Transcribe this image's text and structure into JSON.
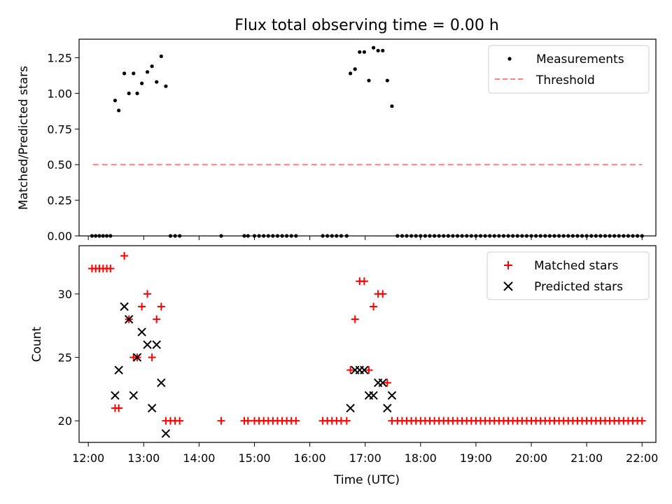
{
  "chart_data": [
    {
      "type": "scatter",
      "title": "Flux total observing time = 0.00 h",
      "xlabel": "",
      "ylabel": "Matched/Predicted stars",
      "xlim": [
        "11:50",
        "22:15"
      ],
      "ylim": [
        0,
        1.38
      ],
      "x_ticks": [
        "12:00",
        "13:00",
        "14:00",
        "15:00",
        "16:00",
        "17:00",
        "18:00",
        "19:00",
        "20:00",
        "21:00",
        "22:00"
      ],
      "y_ticks": [
        "0.00",
        "0.25",
        "0.50",
        "0.75",
        "1.00",
        "1.25"
      ],
      "legend": {
        "position": "top-right",
        "entries": [
          "Measurements",
          "Threshold"
        ]
      },
      "series": [
        {
          "name": "Measurements",
          "marker": "dot",
          "color": "#000000",
          "points": [
            [
              "12:04",
              0
            ],
            [
              "12:08",
              0
            ],
            [
              "12:12",
              0
            ],
            [
              "12:16",
              0
            ],
            [
              "12:20",
              0
            ],
            [
              "12:24",
              0
            ],
            [
              "12:29",
              0.95
            ],
            [
              "12:33",
              0.88
            ],
            [
              "12:39",
              1.14
            ],
            [
              "12:44",
              1.0
            ],
            [
              "12:49",
              1.14
            ],
            [
              "12:53",
              1.0
            ],
            [
              "12:58",
              1.07
            ],
            [
              "13:04",
              1.15
            ],
            [
              "13:09",
              1.19
            ],
            [
              "13:14",
              1.08
            ],
            [
              "13:19",
              1.26
            ],
            [
              "13:24",
              1.05
            ],
            [
              "13:29",
              0
            ],
            [
              "13:34",
              0
            ],
            [
              "13:39",
              0
            ],
            [
              "14:24",
              0
            ],
            [
              "14:49",
              0
            ],
            [
              "14:53",
              0
            ],
            [
              "15:00",
              0
            ],
            [
              "15:05",
              0
            ],
            [
              "15:10",
              0
            ],
            [
              "15:15",
              0
            ],
            [
              "15:20",
              0
            ],
            [
              "15:25",
              0
            ],
            [
              "15:30",
              0
            ],
            [
              "15:35",
              0
            ],
            [
              "15:40",
              0
            ],
            [
              "15:45",
              0
            ],
            [
              "16:14",
              0
            ],
            [
              "16:19",
              0
            ],
            [
              "16:24",
              0
            ],
            [
              "16:29",
              0
            ],
            [
              "16:34",
              0
            ],
            [
              "16:40",
              0
            ],
            [
              "16:44",
              1.14
            ],
            [
              "16:49",
              1.17
            ],
            [
              "16:54",
              1.29
            ],
            [
              "16:59",
              1.29
            ],
            [
              "17:04",
              1.09
            ],
            [
              "17:09",
              1.32
            ],
            [
              "17:14",
              1.3
            ],
            [
              "17:19",
              1.3
            ],
            [
              "17:24",
              1.09
            ],
            [
              "17:29",
              0.91
            ]
          ],
          "zero_points_interval_minutes": 5,
          "zero_points_range": [
            "17:35",
            "22:00"
          ]
        },
        {
          "name": "Threshold",
          "style": "dashed-line",
          "color": "#ff7f7f",
          "x": [
            "12:05",
            "22:00"
          ],
          "y": [
            0.5,
            0.5
          ]
        }
      ]
    },
    {
      "type": "scatter",
      "title": "",
      "xlabel": "Time (UTC)",
      "ylabel": "Count",
      "xlim": [
        "11:50",
        "22:15"
      ],
      "ylim": [
        18.3,
        33.8
      ],
      "x_ticks": [
        "12:00",
        "13:00",
        "14:00",
        "15:00",
        "16:00",
        "17:00",
        "18:00",
        "19:00",
        "20:00",
        "21:00",
        "22:00"
      ],
      "y_ticks": [
        "20",
        "25",
        "30"
      ],
      "legend": {
        "position": "top-right",
        "entries": [
          "Matched stars",
          "Predicted stars"
        ]
      },
      "series": [
        {
          "name": "Matched stars",
          "marker": "plus",
          "color": "#ff0000",
          "points": [
            [
              "12:04",
              32
            ],
            [
              "12:08",
              32
            ],
            [
              "12:12",
              32
            ],
            [
              "12:16",
              32
            ],
            [
              "12:20",
              32
            ],
            [
              "12:24",
              32
            ],
            [
              "12:29",
              21
            ],
            [
              "12:33",
              21
            ],
            [
              "12:39",
              33
            ],
            [
              "12:44",
              28
            ],
            [
              "12:49",
              25
            ],
            [
              "12:53",
              25
            ],
            [
              "12:58",
              29
            ],
            [
              "13:04",
              30
            ],
            [
              "13:09",
              25
            ],
            [
              "13:14",
              28
            ],
            [
              "13:19",
              29
            ],
            [
              "13:24",
              20
            ],
            [
              "13:29",
              20
            ],
            [
              "13:34",
              20
            ],
            [
              "13:39",
              20
            ],
            [
              "14:24",
              20
            ],
            [
              "14:49",
              20
            ],
            [
              "14:53",
              20
            ],
            [
              "15:00",
              20
            ],
            [
              "15:05",
              20
            ],
            [
              "15:10",
              20
            ],
            [
              "15:15",
              20
            ],
            [
              "15:20",
              20
            ],
            [
              "15:25",
              20
            ],
            [
              "15:30",
              20
            ],
            [
              "15:35",
              20
            ],
            [
              "15:40",
              20
            ],
            [
              "15:45",
              20
            ],
            [
              "16:14",
              20
            ],
            [
              "16:19",
              20
            ],
            [
              "16:24",
              20
            ],
            [
              "16:29",
              20
            ],
            [
              "16:34",
              20
            ],
            [
              "16:40",
              20
            ],
            [
              "16:44",
              24
            ],
            [
              "16:49",
              28
            ],
            [
              "16:54",
              31
            ],
            [
              "16:59",
              31
            ],
            [
              "17:04",
              24
            ],
            [
              "17:09",
              29
            ],
            [
              "17:14",
              30
            ],
            [
              "17:19",
              30
            ],
            [
              "17:24",
              23
            ],
            [
              "17:29",
              20
            ]
          ],
          "twenty_points_interval_minutes": 5,
          "twenty_points_range": [
            "17:35",
            "22:00"
          ]
        },
        {
          "name": "Predicted stars",
          "marker": "x",
          "color": "#000000",
          "points": [
            [
              "12:29",
              22
            ],
            [
              "12:33",
              24
            ],
            [
              "12:39",
              29
            ],
            [
              "12:44",
              28
            ],
            [
              "12:49",
              22
            ],
            [
              "12:53",
              25
            ],
            [
              "12:58",
              27
            ],
            [
              "13:04",
              26
            ],
            [
              "13:09",
              21
            ],
            [
              "13:14",
              26
            ],
            [
              "13:19",
              23
            ],
            [
              "13:24",
              19
            ],
            [
              "16:44",
              21
            ],
            [
              "16:49",
              24
            ],
            [
              "16:54",
              24
            ],
            [
              "16:59",
              24
            ],
            [
              "17:04",
              22
            ],
            [
              "17:09",
              22
            ],
            [
              "17:14",
              23
            ],
            [
              "17:19",
              23
            ],
            [
              "17:24",
              21
            ],
            [
              "17:29",
              22
            ]
          ]
        }
      ]
    }
  ]
}
